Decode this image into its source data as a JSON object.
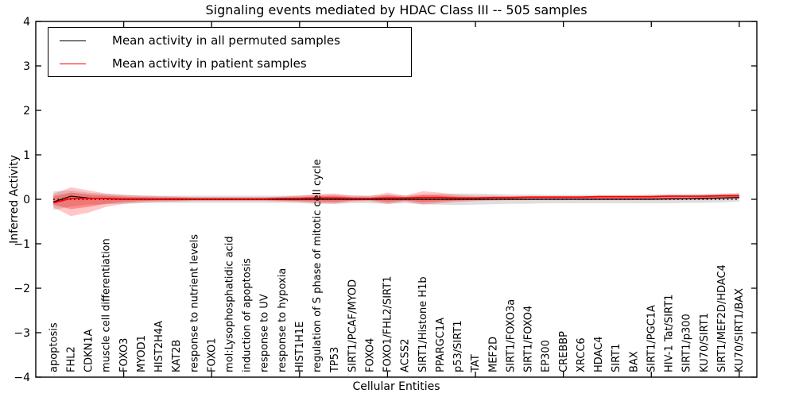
{
  "figure": {
    "title": "Signaling events mediated by HDAC Class III -- 505 samples",
    "xlabel": "Cellular Entities",
    "ylabel": "Inferred Activity"
  },
  "legend": {
    "items": [
      {
        "label": "Mean activity in all permuted samples",
        "color": "#000000"
      },
      {
        "label": "Mean activity in patient samples",
        "color": "#ff0000"
      }
    ],
    "position": "upper left"
  },
  "colors": {
    "patient_line": "#ff0000",
    "permuted_line": "#000000",
    "axis": "#000000",
    "background": "#ffffff"
  },
  "chart_data": {
    "type": "line",
    "title": "Signaling events mediated by HDAC Class III -- 505 samples",
    "xlabel": "Cellular Entities",
    "ylabel": "Inferred Activity",
    "ylim": [
      -4,
      4
    ],
    "yticks": [
      4,
      3,
      2,
      1,
      0,
      -1,
      -2,
      -3,
      -4
    ],
    "ytick_labels": [
      "4",
      "3",
      "2",
      "1",
      "0",
      "−1",
      "−2",
      "−3",
      "−4"
    ],
    "x_tick_every": 5,
    "grid": false,
    "legend_position": "upper left",
    "zero_reference_line": {
      "y": 0,
      "style": "dotted",
      "color": "#000000"
    },
    "categories": [
      "apoptosis",
      "FHL2",
      "CDKN1A",
      "muscle cell differentiation",
      "FOXO3",
      "MYOD1",
      "HIST2H4A",
      "KAT2B",
      "response to nutrient levels",
      "FOXO1",
      "mol:Lysophosphatidic acid",
      "induction of apoptosis",
      "response to UV",
      "response to hypoxia",
      "HIST1H1E",
      "regulation of S phase of mitotic cell cycle",
      "TP53",
      "SIRT1/PCAF/MYOD",
      "FOXO4",
      "FOXO1/FHL2/SIRT1",
      "ACSS2",
      "SIRT1/Histone H1b",
      "PPARGC1A",
      "p53/SIRT1",
      "TAT",
      "MEF2D",
      "SIRT1/FOXO3a",
      "SIRT1/FOXO4",
      "EP300",
      "CREBBP",
      "XRCC6",
      "HDAC4",
      "SIRT1",
      "BAX",
      "SIRT1/PGC1A",
      "HIV-1 Tat/SIRT1",
      "SIRT1/p300",
      "KU70/SIRT1",
      "SIRT1/MEF2D/HDAC4",
      "KU70/SIRT1/BAX"
    ],
    "series": [
      {
        "name": "Mean activity in all permuted samples",
        "color": "#000000",
        "style": "solid",
        "width": 1.2,
        "values": [
          -0.06,
          0.07,
          0.03,
          0.01,
          0.0,
          0.0,
          0.0,
          0.0,
          0.0,
          0.0,
          0.0,
          0.0,
          0.0,
          0.0,
          0.0,
          0.0,
          0.0,
          0.0,
          0.0,
          0.0,
          0.0,
          0.0,
          0.0,
          0.0,
          0.0,
          0.0,
          0.0,
          0.0,
          0.0,
          0.0,
          0.0,
          0.0,
          0.0,
          0.0,
          0.0,
          0.01,
          0.01,
          0.02,
          0.03,
          0.04
        ]
      },
      {
        "name": "Mean activity in patient samples",
        "color": "#ff0000",
        "style": "solid",
        "width": 1.7,
        "values": [
          -0.08,
          0.02,
          0.02,
          0.02,
          0.01,
          0.01,
          0.01,
          0.01,
          0.01,
          0.01,
          0.01,
          0.01,
          0.01,
          0.02,
          0.02,
          0.03,
          0.03,
          0.02,
          0.02,
          0.03,
          0.03,
          0.04,
          0.04,
          0.03,
          0.03,
          0.04,
          0.04,
          0.05,
          0.05,
          0.05,
          0.05,
          0.06,
          0.06,
          0.06,
          0.06,
          0.07,
          0.07,
          0.07,
          0.08,
          0.08
        ]
      }
    ],
    "bands": [
      {
        "name": "permuted samples range",
        "color": "#000000",
        "opacity": 0.13,
        "upper": [
          0.18,
          0.2,
          0.15,
          0.12,
          0.1,
          0.09,
          0.08,
          0.08,
          0.08,
          0.08,
          0.08,
          0.08,
          0.08,
          0.08,
          0.09,
          0.1,
          0.1,
          0.09,
          0.09,
          0.1,
          0.09,
          0.11,
          0.12,
          0.13,
          0.13,
          0.12,
          0.11,
          0.11,
          0.1,
          0.1,
          0.1,
          0.1,
          0.1,
          0.1,
          0.11,
          0.11,
          0.12,
          0.12,
          0.13,
          0.14
        ],
        "lower": [
          -0.24,
          -0.16,
          -0.12,
          -0.11,
          -0.1,
          -0.09,
          -0.08,
          -0.08,
          -0.08,
          -0.08,
          -0.08,
          -0.08,
          -0.08,
          -0.08,
          -0.09,
          -0.1,
          -0.1,
          -0.09,
          -0.09,
          -0.1,
          -0.09,
          -0.11,
          -0.12,
          -0.13,
          -0.12,
          -0.11,
          -0.1,
          -0.1,
          -0.09,
          -0.09,
          -0.09,
          -0.09,
          -0.09,
          -0.09,
          -0.09,
          -0.09,
          -0.08,
          -0.08,
          -0.07,
          -0.05
        ]
      },
      {
        "name": "patient samples outer range",
        "color": "#ff0000",
        "opacity": 0.22,
        "upper": [
          0.12,
          0.27,
          0.2,
          0.13,
          0.1,
          0.08,
          0.07,
          0.06,
          0.05,
          0.05,
          0.05,
          0.05,
          0.05,
          0.06,
          0.08,
          0.12,
          0.13,
          0.08,
          0.07,
          0.15,
          0.08,
          0.18,
          0.15,
          0.1,
          0.08,
          0.08,
          0.07,
          0.07,
          0.07,
          0.07,
          0.07,
          0.07,
          0.07,
          0.07,
          0.08,
          0.1,
          0.09,
          0.1,
          0.11,
          0.13
        ],
        "lower": [
          -0.18,
          -0.38,
          -0.3,
          -0.17,
          -0.1,
          -0.07,
          -0.06,
          -0.05,
          -0.04,
          -0.04,
          -0.04,
          -0.04,
          -0.04,
          -0.05,
          -0.06,
          -0.09,
          -0.1,
          -0.05,
          -0.04,
          -0.11,
          -0.05,
          -0.12,
          -0.09,
          -0.06,
          -0.04,
          -0.03,
          -0.02,
          -0.02,
          -0.01,
          -0.01,
          -0.01,
          -0.01,
          -0.01,
          -0.01,
          -0.01,
          -0.02,
          -0.01,
          -0.01,
          0.0,
          0.01
        ]
      },
      {
        "name": "patient samples inner range",
        "color": "#ff0000",
        "opacity": 0.3,
        "upper": [
          0.07,
          0.15,
          0.11,
          0.08,
          0.06,
          0.05,
          0.04,
          0.04,
          0.03,
          0.03,
          0.03,
          0.03,
          0.03,
          0.04,
          0.05,
          0.07,
          0.08,
          0.05,
          0.04,
          0.09,
          0.05,
          0.1,
          0.09,
          0.06,
          0.05,
          0.05,
          0.05,
          0.05,
          0.05,
          0.05,
          0.05,
          0.05,
          0.05,
          0.05,
          0.06,
          0.07,
          0.07,
          0.07,
          0.08,
          0.09
        ],
        "lower": [
          -0.12,
          -0.22,
          -0.17,
          -0.1,
          -0.06,
          -0.04,
          -0.03,
          -0.03,
          -0.02,
          -0.02,
          -0.02,
          -0.02,
          -0.02,
          -0.03,
          -0.04,
          -0.05,
          -0.06,
          -0.03,
          -0.02,
          -0.06,
          -0.03,
          -0.07,
          -0.05,
          -0.03,
          -0.02,
          -0.01,
          -0.01,
          0.0,
          0.0,
          0.0,
          0.0,
          0.0,
          0.0,
          0.0,
          0.0,
          -0.01,
          0.0,
          0.0,
          0.01,
          0.02
        ]
      }
    ]
  }
}
